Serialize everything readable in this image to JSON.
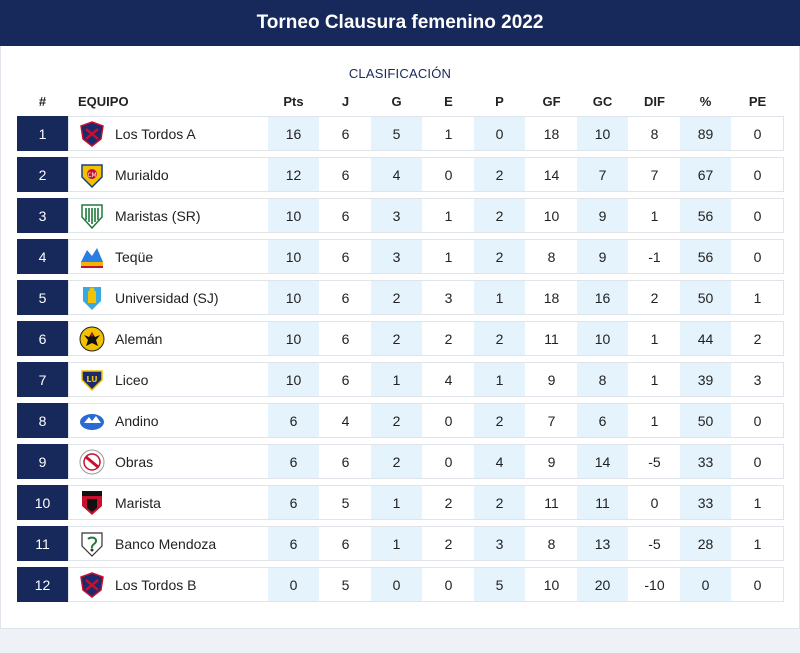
{
  "header": {
    "title": "Torneo Clausura femenino 2022"
  },
  "subtitle": "CLASIFICACIÓN",
  "columns": {
    "pos": "#",
    "team": "EQUIPO",
    "pts": "Pts",
    "j": "J",
    "g": "G",
    "e": "E",
    "p": "P",
    "gf": "GF",
    "gc": "GC",
    "dif": "DIF",
    "pct": "%",
    "pe": "PE"
  },
  "colors": {
    "header_bg": "#17295a",
    "shade": "#e5f3fc"
  },
  "rows": [
    {
      "pos": "1",
      "team": "Los Tordos A",
      "logo": "tordos-shield-icon",
      "pts": "16",
      "j": "6",
      "g": "5",
      "e": "1",
      "p": "0",
      "gf": "18",
      "gc": "10",
      "dif": "8",
      "pct": "89",
      "pe": "0"
    },
    {
      "pos": "2",
      "team": "Murialdo",
      "logo": "murialdo-shield-icon",
      "pts": "12",
      "j": "6",
      "g": "4",
      "e": "0",
      "p": "2",
      "gf": "14",
      "gc": "7",
      "dif": "7",
      "pct": "67",
      "pe": "0"
    },
    {
      "pos": "3",
      "team": "Maristas (SR)",
      "logo": "maristas-shield-icon",
      "pts": "10",
      "j": "6",
      "g": "3",
      "e": "1",
      "p": "2",
      "gf": "10",
      "gc": "9",
      "dif": "1",
      "pct": "56",
      "pe": "0"
    },
    {
      "pos": "4",
      "team": "Teqüe",
      "logo": "teque-logo-icon",
      "pts": "10",
      "j": "6",
      "g": "3",
      "e": "1",
      "p": "2",
      "gf": "8",
      "gc": "9",
      "dif": "-1",
      "pct": "56",
      "pe": "0"
    },
    {
      "pos": "5",
      "team": "Universidad (SJ)",
      "logo": "universidad-shield-icon",
      "pts": "10",
      "j": "6",
      "g": "2",
      "e": "3",
      "p": "1",
      "gf": "18",
      "gc": "16",
      "dif": "2",
      "pct": "50",
      "pe": "1"
    },
    {
      "pos": "6",
      "team": "Alemán",
      "logo": "aleman-eagle-icon",
      "pts": "10",
      "j": "6",
      "g": "2",
      "e": "2",
      "p": "2",
      "gf": "11",
      "gc": "10",
      "dif": "1",
      "pct": "44",
      "pe": "2"
    },
    {
      "pos": "7",
      "team": "Liceo",
      "logo": "liceo-shield-icon",
      "pts": "10",
      "j": "6",
      "g": "1",
      "e": "4",
      "p": "1",
      "gf": "9",
      "gc": "8",
      "dif": "1",
      "pct": "39",
      "pe": "3"
    },
    {
      "pos": "8",
      "team": "Andino",
      "logo": "andino-logo-icon",
      "pts": "6",
      "j": "4",
      "g": "2",
      "e": "0",
      "p": "2",
      "gf": "7",
      "gc": "6",
      "dif": "1",
      "pct": "50",
      "pe": "0"
    },
    {
      "pos": "9",
      "team": "Obras",
      "logo": "obras-logo-icon",
      "pts": "6",
      "j": "6",
      "g": "2",
      "e": "0",
      "p": "4",
      "gf": "9",
      "gc": "14",
      "dif": "-5",
      "pct": "33",
      "pe": "0"
    },
    {
      "pos": "10",
      "team": "Marista",
      "logo": "marista-shield-icon",
      "pts": "6",
      "j": "5",
      "g": "1",
      "e": "2",
      "p": "2",
      "gf": "11",
      "gc": "11",
      "dif": "0",
      "pct": "33",
      "pe": "1"
    },
    {
      "pos": "11",
      "team": "Banco Mendoza",
      "logo": "banco-mendoza-shield-icon",
      "pts": "6",
      "j": "6",
      "g": "1",
      "e": "2",
      "p": "3",
      "gf": "8",
      "gc": "13",
      "dif": "-5",
      "pct": "28",
      "pe": "1"
    },
    {
      "pos": "12",
      "team": "Los Tordos B",
      "logo": "tordos-shield-icon",
      "pts": "0",
      "j": "5",
      "g": "0",
      "e": "0",
      "p": "5",
      "gf": "10",
      "gc": "20",
      "dif": "-10",
      "pct": "0",
      "pe": "0"
    }
  ]
}
